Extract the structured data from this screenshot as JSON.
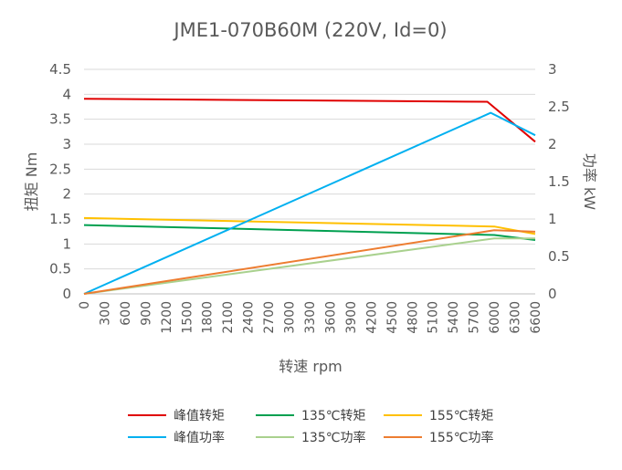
{
  "chart_data": {
    "type": "line",
    "title": "JME1-070B60M (220V, Id=0)",
    "xlabel": "转速 rpm",
    "ylabel_left": "扭矩 Nm",
    "ylabel_right": "功率 kW",
    "xlim": [
      0,
      6600
    ],
    "ylim_left": [
      0,
      4.5
    ],
    "ylim_right": [
      0,
      3
    ],
    "x_ticks": [
      "0",
      "300",
      "600",
      "900",
      "1200",
      "1500",
      "1800",
      "2100",
      "2400",
      "2700",
      "3000",
      "3300",
      "3600",
      "3900",
      "4200",
      "4500",
      "4800",
      "5100",
      "5400",
      "5700",
      "6000",
      "6300",
      "6600"
    ],
    "y_left_ticks": [
      "0",
      "0.5",
      "1",
      "1.5",
      "2",
      "2.5",
      "3",
      "3.5",
      "4",
      "4.5"
    ],
    "y_right_ticks": [
      "0",
      "0.5",
      "1",
      "1.5",
      "2",
      "2.5",
      "3"
    ],
    "grid": true,
    "legend_position": "bottom",
    "series": [
      {
        "name": "峰值转矩",
        "axis": "left",
        "color": "#e00000",
        "x": [
          0,
          5900,
          6600
        ],
        "values": [
          3.91,
          3.85,
          3.05
        ]
      },
      {
        "name": "135℃转矩",
        "axis": "left",
        "color": "#00a050",
        "x": [
          0,
          6000,
          6600
        ],
        "values": [
          1.38,
          1.18,
          1.08
        ]
      },
      {
        "name": "155℃转矩",
        "axis": "left",
        "color": "#ffc000",
        "x": [
          0,
          6000,
          6600
        ],
        "values": [
          1.52,
          1.35,
          1.2
        ]
      },
      {
        "name": "峰值功率",
        "axis": "right",
        "color": "#00b0f0",
        "x": [
          0,
          5950,
          6600
        ],
        "values": [
          0,
          2.42,
          2.12
        ]
      },
      {
        "name": "135℃功率",
        "axis": "right",
        "color": "#a9d18e",
        "x": [
          0,
          6000,
          6600
        ],
        "values": [
          0,
          0.74,
          0.74
        ]
      },
      {
        "name": "155℃功率",
        "axis": "right",
        "color": "#ed7d31",
        "x": [
          0,
          6000,
          6600
        ],
        "values": [
          0,
          0.85,
          0.83
        ]
      }
    ]
  }
}
